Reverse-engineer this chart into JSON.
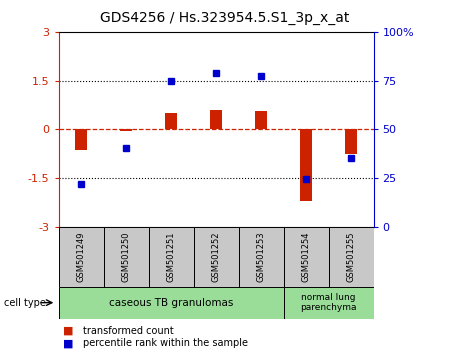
{
  "title": "GDS4256 / Hs.323954.5.S1_3p_x_at",
  "samples": [
    "GSM501249",
    "GSM501250",
    "GSM501251",
    "GSM501252",
    "GSM501253",
    "GSM501254",
    "GSM501255"
  ],
  "red_values": [
    -0.65,
    -0.05,
    0.5,
    0.6,
    0.55,
    -2.2,
    -0.75
  ],
  "blue_values": [
    -1.68,
    -0.58,
    1.48,
    1.72,
    1.65,
    -1.52,
    -0.88
  ],
  "ylim_left": [
    -3,
    3
  ],
  "ylim_right": [
    0,
    100
  ],
  "yticks_left": [
    -3,
    -1.5,
    0,
    1.5,
    3
  ],
  "yticks_right": [
    0,
    25,
    50,
    75,
    100
  ],
  "ytick_labels_left": [
    "-3",
    "-1.5",
    "0",
    "1.5",
    "3"
  ],
  "ytick_labels_right": [
    "0",
    "25",
    "50",
    "75",
    "100%"
  ],
  "hlines_dotted": [
    -1.5,
    1.5
  ],
  "hline_dashed": 0,
  "red_color": "#cc2200",
  "blue_color": "#0000cc",
  "bar_width": 0.28,
  "background_color": "#ffffff",
  "plot_bg_color": "#ffffff",
  "legend_red": "transformed count",
  "legend_blue": "percentile rank within the sample",
  "cell_type_label": "cell type",
  "gray_bg": "#c8c8c8",
  "green_bg": "#99dd99",
  "ct1_label": "caseous TB granulomas",
  "ct2_label": "normal lung\nparenchyma",
  "ct1_samples": 5,
  "ct2_samples": 2,
  "title_fontsize": 10,
  "tick_fontsize": 8,
  "sample_fontsize": 6,
  "legend_fontsize": 7
}
